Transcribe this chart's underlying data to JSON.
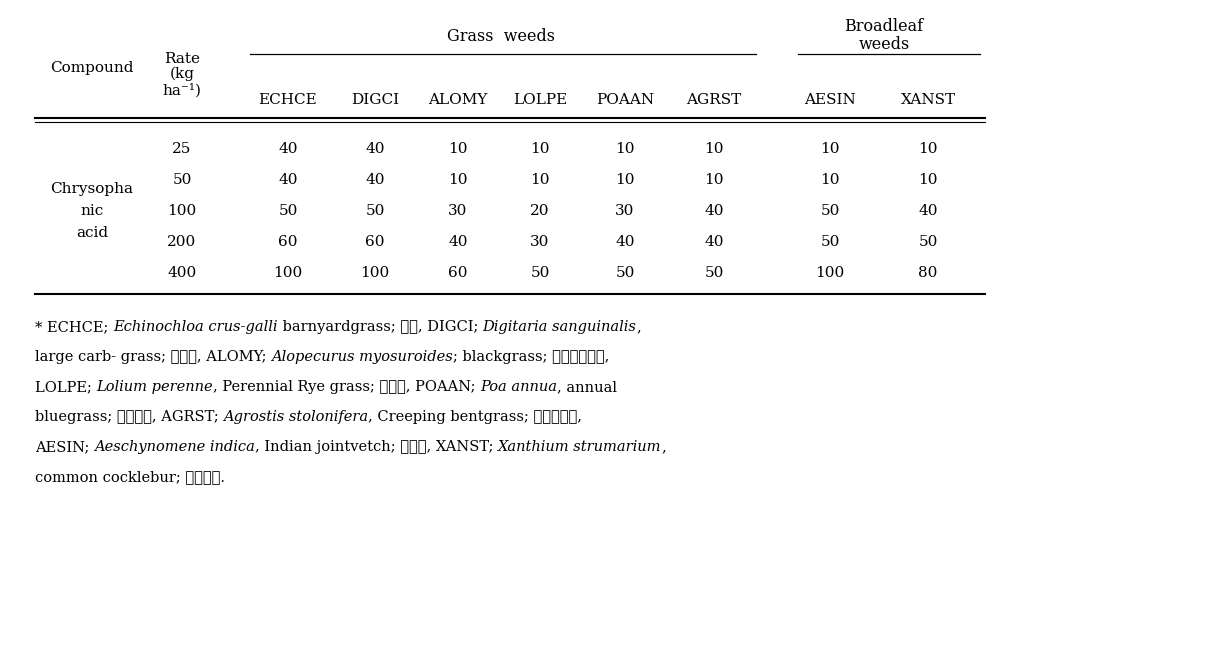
{
  "compound_lines": [
    "Chrysopha",
    "nic",
    "acid"
  ],
  "rates": [
    "25",
    "50",
    "100",
    "200",
    "400"
  ],
  "grass_weeds_label": "Grass  weeds",
  "col_headers": [
    "ECHCE",
    "DIGCI",
    "ALOMY",
    "LOLPE",
    "POAAN",
    "AGRST",
    "AESIN",
    "XANST"
  ],
  "compound_header": "Compound",
  "data": [
    [
      40,
      40,
      10,
      10,
      10,
      10,
      10,
      10
    ],
    [
      40,
      40,
      10,
      10,
      10,
      10,
      10,
      10
    ],
    [
      50,
      50,
      30,
      20,
      30,
      40,
      50,
      40
    ],
    [
      60,
      60,
      40,
      30,
      40,
      40,
      50,
      50
    ],
    [
      100,
      100,
      60,
      50,
      50,
      50,
      100,
      80
    ]
  ],
  "footnote_segments": [
    [
      [
        "* ECHCE; ",
        false
      ],
      [
        "Echinochloa crus-galli",
        true
      ],
      [
        " barnyardgrass; 물피, DIGCI; ",
        false
      ],
      [
        "Digitaria sanguinalis",
        true
      ],
      [
        ",",
        false
      ]
    ],
    [
      [
        "large carb- grass; 바랑이, ALOMY; ",
        false
      ],
      [
        "Alopecurus myosuroides",
        true
      ],
      [
        "; blackgrass; 취꼼리댃새품,",
        false
      ]
    ],
    [
      [
        "LOLPE; ",
        false
      ],
      [
        "Lolium perenne",
        true
      ],
      [
        ", Perennial Rye grass; 호밀품, POAAN; ",
        false
      ],
      [
        "Poa annua",
        true
      ],
      [
        ", annual",
        false
      ]
    ],
    [
      [
        "bluegrass; 새포아품, AGRST; ",
        false
      ],
      [
        "Agrostis stolonifera",
        true
      ],
      [
        ", Creeping bentgrass; 벤트그라스,",
        false
      ]
    ],
    [
      [
        "AESIN; ",
        false
      ],
      [
        "Aeschynomene indica",
        true
      ],
      [
        ", Indian jointvetch; 자귀품, XANST; ",
        false
      ],
      [
        "Xanthium strumarium",
        true
      ],
      [
        ",",
        false
      ]
    ],
    [
      [
        "common cocklebur; 도꼼마리.",
        false
      ]
    ]
  ],
  "bg_color": "#ffffff",
  "text_color": "#000000",
  "font_size": 11.0,
  "footnote_font_size": 10.5
}
